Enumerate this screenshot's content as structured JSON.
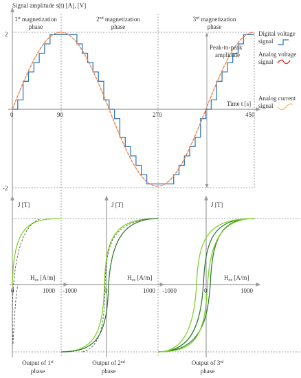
{
  "top": {
    "y_axis_label": "Signal amplitude s(t) [A], [V]",
    "x_axis_label": "Time t [s]",
    "y_ticks": [
      "2",
      "-2"
    ],
    "x_ticks": [
      "0",
      "90",
      "270",
      "450"
    ],
    "phase1": {
      "line1": "1st magnetization",
      "line2": "phase"
    },
    "phase2": {
      "line1": "2nd magnetization",
      "line2": "phase"
    },
    "phase3": {
      "line1": "3rd magnetization",
      "line2": "phase"
    },
    "peak_label": {
      "line1": "Peak-to-peak",
      "line2": "amplitude"
    },
    "legend": [
      {
        "line1": "Digital voltage",
        "line2": "signal",
        "color": "#2f78c4"
      },
      {
        "line1": "Analog voltage",
        "line2": "signal",
        "color": "#e0201b"
      },
      {
        "line1": "Analog current",
        "line2": "signal",
        "color": "#f5b25c"
      }
    ]
  },
  "bottom": {
    "y_label": "J [T]",
    "x_label": "Hex [A/m]",
    "zero": "0",
    "pos_tick": "1000",
    "neg_tick": "-1000",
    "panel1_caption": {
      "line1": "Output of 1st",
      "line2": "phase"
    },
    "panel2_caption": {
      "line1": "Output of 2nd",
      "line2": "phase"
    },
    "panel3_caption": {
      "line1": "Output of 3rd",
      "line2": "phase"
    },
    "colors": {
      "light": "#7ed321",
      "dark": "#2e7d32",
      "dashed": "#555555"
    }
  }
}
